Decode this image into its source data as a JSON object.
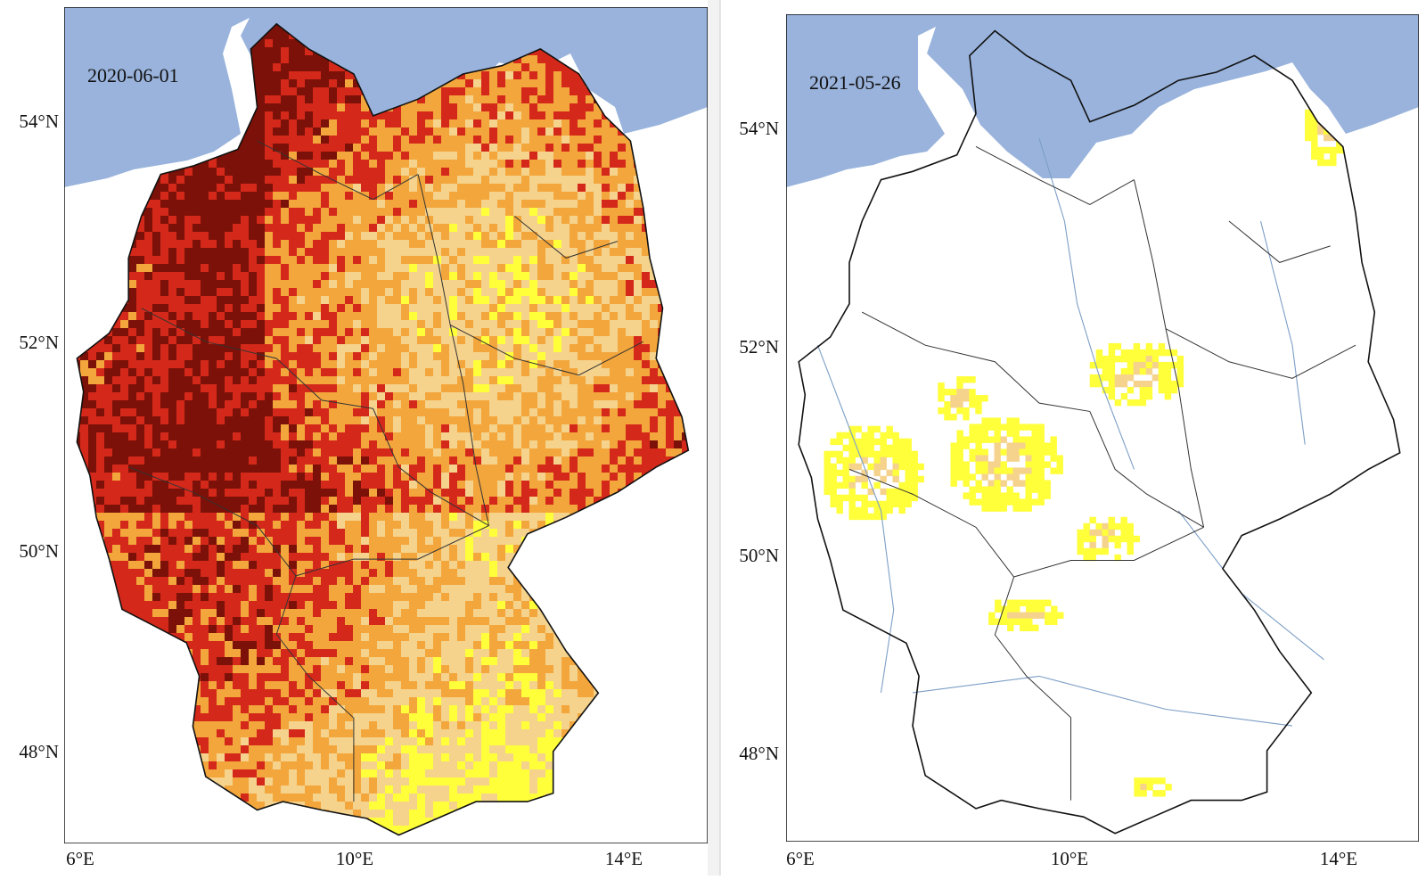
{
  "colors": {
    "sea": "#99b3dc",
    "land_bg": "#ffffff",
    "drought_levels": [
      "#ffff3a",
      "#f5d38c",
      "#f3a63c",
      "#d4291a",
      "#7b1108"
    ],
    "rivers": "#7c9ec6",
    "borders": "#111111",
    "state_borders": "#333333"
  },
  "maps": [
    {
      "id": "map-2020",
      "date": "2020-06-01",
      "lat_labels": [
        "54°N",
        "52°N",
        "50°N",
        "48°N"
      ],
      "lon_labels": [
        "6°E",
        "10°E",
        "14°E"
      ],
      "drought_coverage": "dense"
    },
    {
      "id": "map-2021",
      "date": "2021-05-26",
      "lat_labels": [
        "54°N",
        "52°N",
        "50°N",
        "48°N"
      ],
      "lon_labels": [
        "6°E",
        "10°E",
        "14°E"
      ],
      "drought_coverage": "sparse"
    }
  ]
}
